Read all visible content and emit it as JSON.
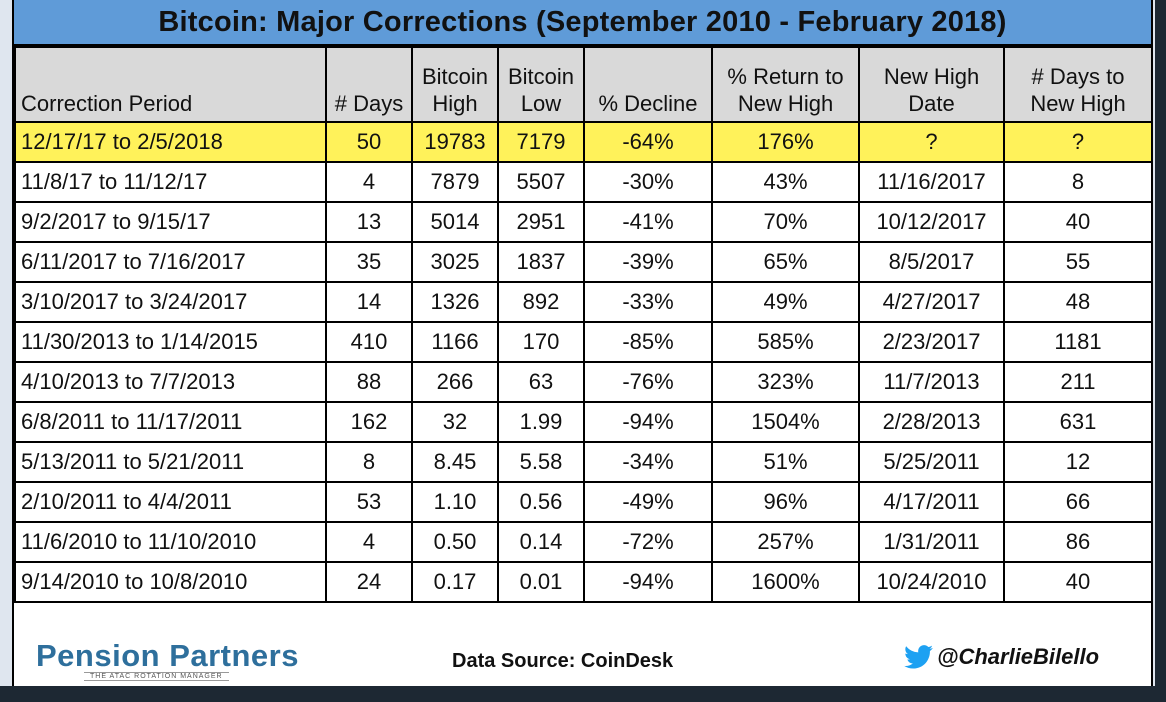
{
  "chart_data": {
    "type": "table",
    "title": "Bitcoin: Major Corrections (September 2010 - February 2018)",
    "columns": [
      "Correction Period",
      "# Days",
      "Bitcoin High",
      "Bitcoin Low",
      "% Decline",
      "% Return to New High",
      "New High Date",
      "# Days to New High"
    ],
    "header_lines": [
      [
        "",
        "Correction Period"
      ],
      [
        "",
        "# Days"
      ],
      [
        "Bitcoin",
        "High"
      ],
      [
        "Bitcoin",
        "Low"
      ],
      [
        "",
        "% Decline"
      ],
      [
        "% Return to",
        "New High"
      ],
      [
        "New High",
        "Date"
      ],
      [
        "# Days to",
        "New High"
      ]
    ],
    "rows": [
      [
        "12/17/17 to 2/5/2018",
        "50",
        "19783",
        "7179",
        "-64%",
        "176%",
        "?",
        "?"
      ],
      [
        "11/8/17 to 11/12/17",
        "4",
        "7879",
        "5507",
        "-30%",
        "43%",
        "11/16/2017",
        "8"
      ],
      [
        "9/2/2017 to 9/15/17",
        "13",
        "5014",
        "2951",
        "-41%",
        "70%",
        "10/12/2017",
        "40"
      ],
      [
        "6/11/2017 to 7/16/2017",
        "35",
        "3025",
        "1837",
        "-39%",
        "65%",
        "8/5/2017",
        "55"
      ],
      [
        "3/10/2017 to 3/24/2017",
        "14",
        "1326",
        "892",
        "-33%",
        "49%",
        "4/27/2017",
        "48"
      ],
      [
        "11/30/2013 to 1/14/2015",
        "410",
        "1166",
        "170",
        "-85%",
        "585%",
        "2/23/2017",
        "1181"
      ],
      [
        "4/10/2013 to 7/7/2013",
        "88",
        "266",
        "63",
        "-76%",
        "323%",
        "11/7/2013",
        "211"
      ],
      [
        "6/8/2011 to 11/17/2011",
        "162",
        "32",
        "1.99",
        "-94%",
        "1504%",
        "2/28/2013",
        "631"
      ],
      [
        "5/13/2011 to 5/21/2011",
        "8",
        "8.45",
        "5.58",
        "-34%",
        "51%",
        "5/25/2011",
        "12"
      ],
      [
        "2/10/2011 to 4/4/2011",
        "53",
        "1.10",
        "0.56",
        "-49%",
        "96%",
        "4/17/2011",
        "66"
      ],
      [
        "11/6/2010 to 11/10/2010",
        "4",
        "0.50",
        "0.14",
        "-72%",
        "257%",
        "1/31/2011",
        "86"
      ],
      [
        "9/14/2010 to 10/8/2010",
        "24",
        "0.17",
        "0.01",
        "-94%",
        "1600%",
        "10/24/2010",
        "40"
      ]
    ],
    "highlighted_row_index": 0,
    "colors": {
      "title_bg": "#5f9bd8",
      "header_bg": "#d9d9d9",
      "highlight_bg": "#fff25a",
      "logo": "#2e6f9c",
      "twitter": "#1da1f2"
    }
  },
  "footer": {
    "logo_text": "Pension Partners",
    "logo_tagline": "THE ATAC ROTATION MANAGER",
    "source": "Data Source: CoinDesk",
    "handle": "@CharlieBilello",
    "handle_icon": "twitter-bird-icon"
  }
}
